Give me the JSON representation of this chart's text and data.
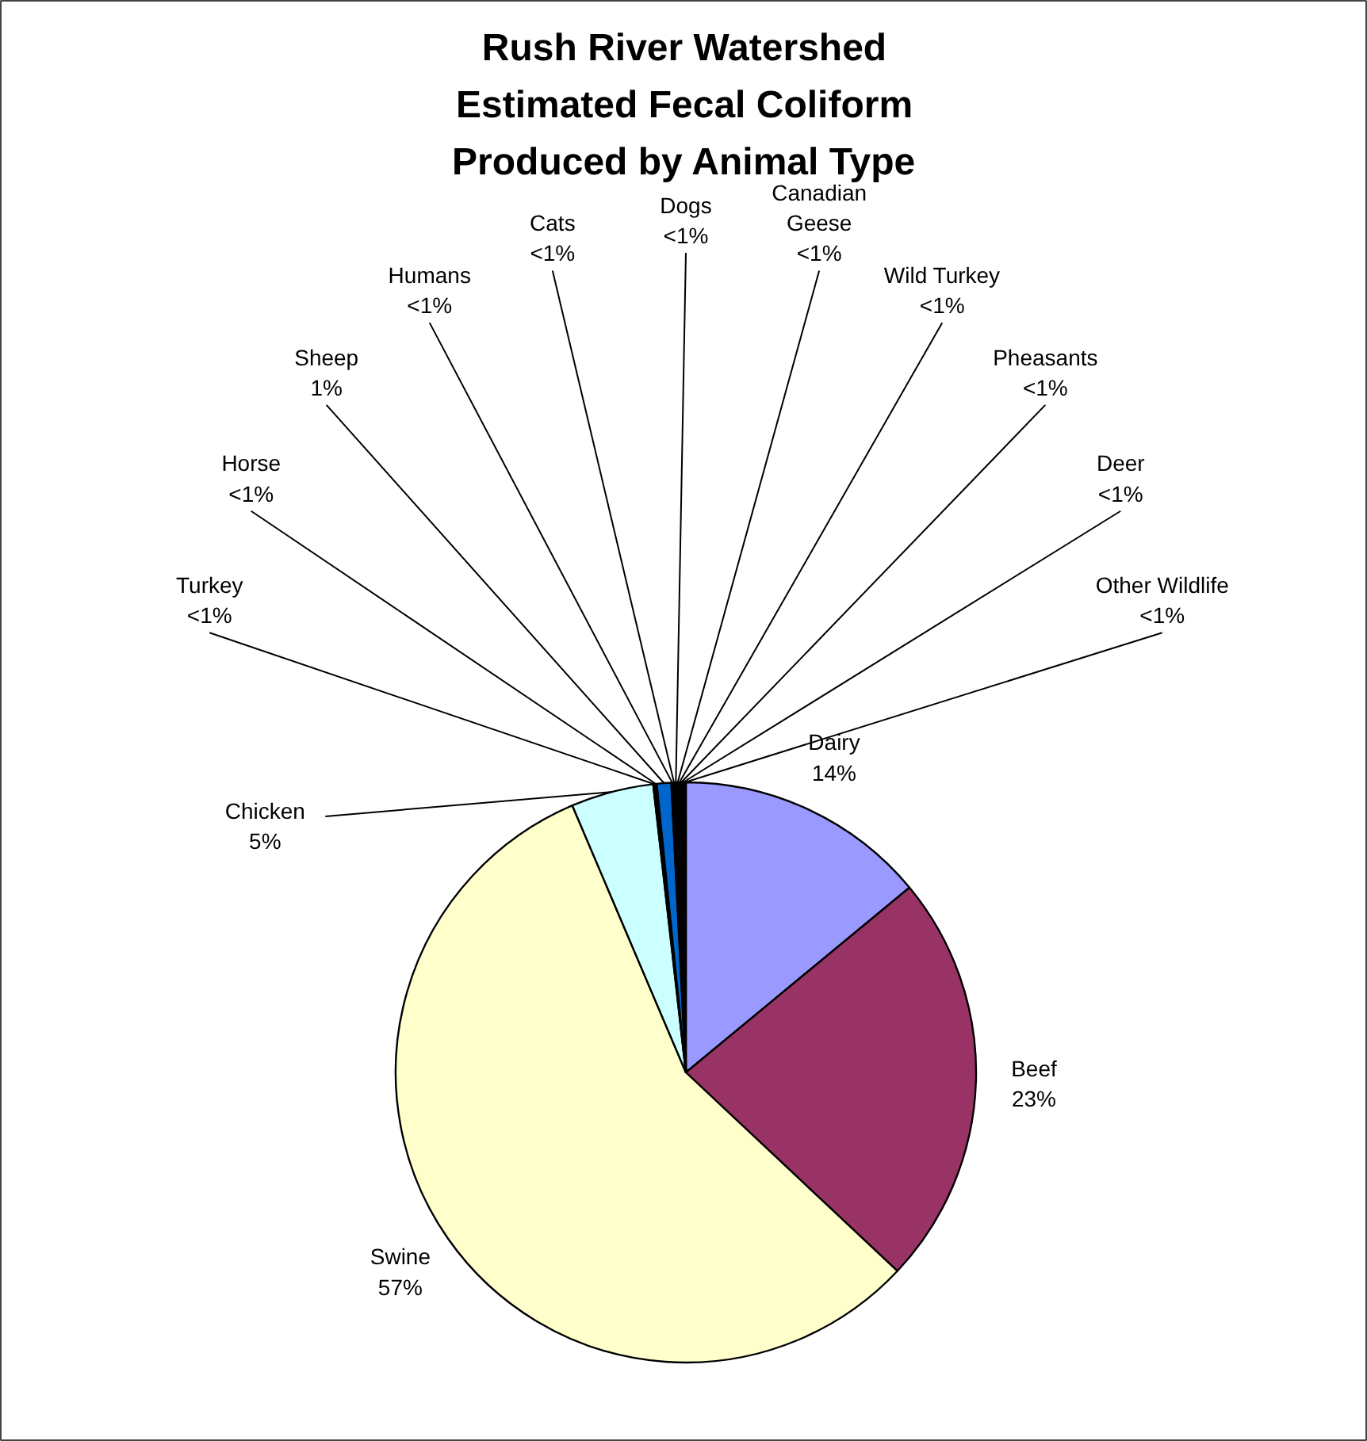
{
  "chart_data": {
    "type": "pie",
    "title": "Rush River Watershed\nEstimated Fecal Coliform\nProduced by Animal Type",
    "categories": [
      "Dairy",
      "Beef",
      "Swine",
      "Chicken",
      "Turkey",
      "Horse",
      "Sheep",
      "Humans",
      "Cats",
      "Dogs",
      "Canadian\nGeese",
      "Wild Turkey",
      "Pheasants",
      "Deer",
      "Other Wildlife"
    ],
    "values": [
      14.0,
      23.0,
      56.6,
      4.6,
      0.1,
      0.1,
      0.8,
      0.1,
      0.1,
      0.1,
      0.1,
      0.1,
      0.1,
      0.1,
      0.1
    ],
    "colors": [
      "#9999ff",
      "#993366",
      "#ffffcc",
      "#ccffff",
      "#660066",
      "#ff8080",
      "#0066cc",
      "#ccccff",
      "#000080",
      "#ff00ff",
      "#ffff00",
      "#00ffff",
      "#800080",
      "#800000",
      "#008080"
    ],
    "value_labels": [
      "14%",
      "23%",
      "57%",
      "5%",
      "<1%",
      "<1%",
      "1%",
      "<1%",
      "<1%",
      "<1%",
      "<1%",
      "<1%",
      "<1%",
      "<1%",
      "<1%"
    ]
  }
}
